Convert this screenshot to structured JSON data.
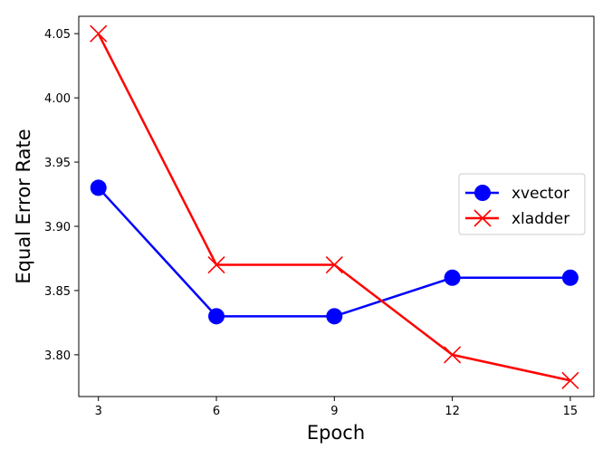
{
  "chart_data": {
    "type": "line",
    "title": "",
    "xlabel": "Epoch",
    "ylabel": "Equal Error Rate",
    "x": [
      3,
      6,
      9,
      12,
      15
    ],
    "x_ticks": [
      "3",
      "6",
      "9",
      "12",
      "15"
    ],
    "y_ticks": [
      "3.80",
      "3.85",
      "3.90",
      "3.95",
      "4.00",
      "4.05"
    ],
    "xlim": [
      2.5,
      15.6
    ],
    "ylim": [
      3.7675,
      4.0635
    ],
    "grid": false,
    "legend_position": "center-right",
    "series": [
      {
        "name": "xvector",
        "values": [
          3.93,
          3.83,
          3.83,
          3.86,
          3.86
        ],
        "color": "#0000ff",
        "marker": "circle"
      },
      {
        "name": "xladder",
        "values": [
          4.05,
          3.87,
          3.87,
          3.8,
          3.78
        ],
        "color": "#ff0000",
        "marker": "x"
      }
    ]
  }
}
